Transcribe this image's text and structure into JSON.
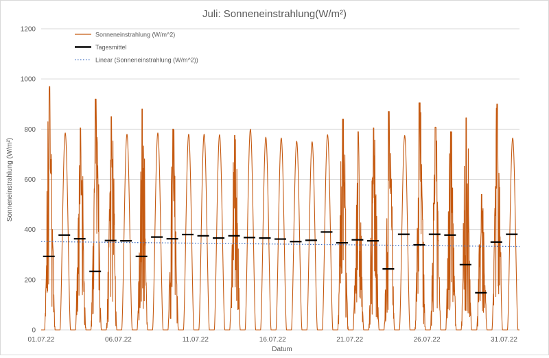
{
  "chart_data": {
    "type": "line",
    "title": "Juli: Sonneneinstrahlung(W/m²)",
    "xlabel": "Datum",
    "ylabel": "Sonneneinstrahlung (W/m²)",
    "ylim": [
      0,
      1200
    ],
    "y_ticks": [
      0,
      200,
      400,
      600,
      800,
      1000,
      1200
    ],
    "x_ticks": [
      "01.07.22",
      "06.07.22",
      "11.07.22",
      "16.07.22",
      "21.07.22",
      "26.07.22",
      "31.07.22"
    ],
    "x_tick_days": [
      1,
      6,
      11,
      16,
      21,
      26,
      31
    ],
    "grid": "horizontal",
    "legend_position": "top-left",
    "colors": {
      "series": "#c55a11",
      "mean": "#000000",
      "trend": "#4472c4",
      "grid": "#d9d9d9"
    },
    "legend": [
      {
        "label": "Sonneneinstrahlung (W/m^2)",
        "style": "line"
      },
      {
        "label": "Tagesmittel",
        "style": "bar"
      },
      {
        "label": "Linear (Sonneneinstrahlung (W/m^2))",
        "style": "dotted"
      }
    ],
    "series": [
      {
        "name": "Sonneneinstrahlung (W/m^2)",
        "kind": "daily_peak_and_cloudiness",
        "days": [
          1,
          2,
          3,
          4,
          5,
          6,
          7,
          8,
          9,
          10,
          11,
          12,
          13,
          14,
          15,
          16,
          17,
          18,
          19,
          20,
          21,
          22,
          23,
          24,
          25,
          26,
          27,
          28,
          29,
          30,
          31
        ],
        "daily_peak": [
          970,
          785,
          805,
          920,
          850,
          780,
          880,
          785,
          800,
          780,
          780,
          778,
          775,
          800,
          768,
          765,
          752,
          750,
          778,
          840,
          790,
          805,
          870,
          775,
          905,
          808,
          790,
          845,
          540,
          900,
          765
        ],
        "cloudy": [
          true,
          false,
          true,
          true,
          true,
          false,
          true,
          false,
          true,
          false,
          false,
          false,
          true,
          false,
          false,
          false,
          false,
          false,
          false,
          true,
          true,
          true,
          true,
          false,
          true,
          true,
          true,
          true,
          true,
          true,
          false
        ]
      },
      {
        "name": "Tagesmittel",
        "days": [
          1,
          2,
          3,
          4,
          5,
          6,
          7,
          8,
          9,
          10,
          11,
          12,
          13,
          14,
          15,
          16,
          17,
          18,
          19,
          20,
          21,
          22,
          23,
          24,
          25,
          26,
          27,
          28,
          29,
          30,
          31
        ],
        "values": [
          293,
          378,
          363,
          233,
          356,
          355,
          293,
          370,
          363,
          380,
          375,
          366,
          375,
          368,
          366,
          362,
          352,
          357,
          390,
          347,
          359,
          355,
          243,
          381,
          339,
          381,
          378,
          260,
          148,
          350,
          381
        ]
      },
      {
        "name": "Linear (Sonneneinstrahlung (W/m^2))",
        "x": [
          1,
          32
        ],
        "values": [
          352,
          332
        ]
      }
    ]
  }
}
